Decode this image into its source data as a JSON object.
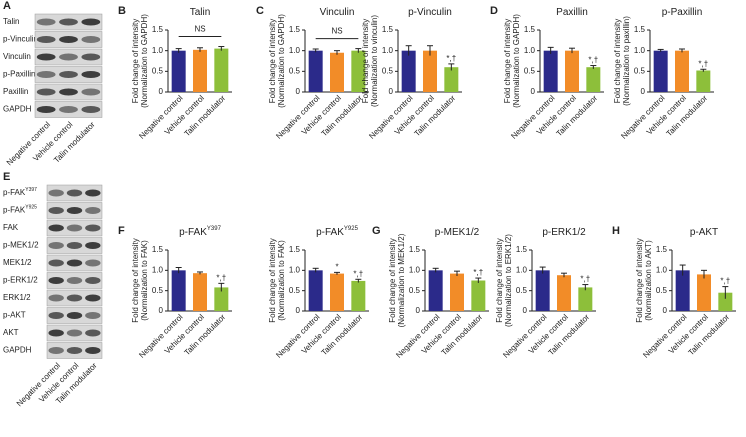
{
  "blots": [
    {
      "panel": "A",
      "labels": [
        "Talin",
        "p-Vinculin",
        "Vinculin",
        "p-Paxillin",
        "Paxillin",
        "GAPDH"
      ],
      "categories": [
        "Negative control",
        "Vehicle control",
        "Talin modulator"
      ]
    },
    {
      "panel": "E",
      "labels": [
        {
          "text": "p-FAK",
          "sup": "Y397"
        },
        {
          "text": "p-FAK",
          "sup": "Y925"
        },
        "FAK",
        "p-MEK1/2",
        "MEK1/2",
        "p-ERK1/2",
        "ERK1/2",
        "p-AKT",
        "AKT",
        "GAPDH"
      ],
      "categories": [
        "Negative control",
        "Vehicle control",
        "Talin modulator"
      ]
    }
  ],
  "chart_data": [
    {
      "type": "bar",
      "panel": "B",
      "title": "Talin",
      "y_label": [
        "Fold change of intensity",
        "(Normalization to GAPDH)"
      ],
      "categories": [
        "Negative control",
        "Vehicle control",
        "Talin modulator"
      ],
      "values": [
        1.0,
        1.02,
        1.05
      ],
      "errors": [
        0.05,
        0.05,
        0.05
      ],
      "colors": [
        "#2b2a8a",
        "#f28c28",
        "#8dbf3a"
      ],
      "ns": "NS",
      "ylim": [
        0,
        1.5
      ],
      "yticks": [
        0,
        0.5,
        {
          "value": 1,
          "label": "1.0"
        },
        1.5
      ]
    },
    {
      "type": "bar",
      "panel": "C",
      "title": "Vinculin",
      "y_label": [
        "Fold change of intensity",
        "(Normalization to GAPDH)"
      ],
      "categories": [
        "Negative control",
        "Vehicle control",
        "Talin modulator"
      ],
      "values": [
        1.0,
        0.95,
        1.0
      ],
      "errors": [
        0.04,
        0.05,
        0.05
      ],
      "colors": [
        "#2b2a8a",
        "#f28c28",
        "#8dbf3a"
      ],
      "ns": "NS",
      "ylim": [
        0,
        1.5
      ],
      "yticks": [
        0,
        0.5,
        {
          "value": 1,
          "label": "1.0"
        },
        1.5
      ]
    },
    {
      "type": "bar",
      "title": "p-Vinculin",
      "y_label": [
        "Fold change of intensity",
        "(Normalization to vinculin)"
      ],
      "categories": [
        "Negative control",
        "Vehicle control",
        "Talin modulator"
      ],
      "values": [
        1.0,
        1.0,
        0.6
      ],
      "errors": [
        0.12,
        0.12,
        0.08
      ],
      "significance": [
        null,
        null,
        "*,†"
      ],
      "colors": [
        "#2b2a8a",
        "#f28c28",
        "#8dbf3a"
      ],
      "ylim": [
        0,
        1.5
      ],
      "yticks": [
        0,
        0.5,
        {
          "value": 1,
          "label": "1.0"
        },
        1.5
      ]
    },
    {
      "type": "bar",
      "panel": "D",
      "title": "Paxillin",
      "y_label": [
        "Fold change of intensity",
        "(Normalization to GAPDH)"
      ],
      "categories": [
        "Negative control",
        "Vehicle control",
        "Talin modulator"
      ],
      "values": [
        1.0,
        1.0,
        0.6
      ],
      "errors": [
        0.08,
        0.06,
        0.04
      ],
      "significance": [
        null,
        null,
        "*,†"
      ],
      "colors": [
        "#2b2a8a",
        "#f28c28",
        "#8dbf3a"
      ],
      "ylim": [
        0,
        1.5
      ],
      "yticks": [
        0,
        0.5,
        {
          "value": 1,
          "label": "1.0"
        },
        1.5
      ]
    },
    {
      "type": "bar",
      "title": "p-Paxillin",
      "y_label": [
        "Fold change of intensity",
        "(Normalization to paxillin)"
      ],
      "categories": [
        "Negative control",
        "Vehicle control",
        "Talin modulator"
      ],
      "values": [
        1.0,
        1.0,
        0.52
      ],
      "errors": [
        0.03,
        0.04,
        0.03
      ],
      "significance": [
        null,
        null,
        "*,†"
      ],
      "colors": [
        "#2b2a8a",
        "#f28c28",
        "#8dbf3a"
      ],
      "ylim": [
        0,
        1.5
      ],
      "yticks": [
        0,
        0.5,
        {
          "value": 1,
          "label": "1.0"
        },
        1.5
      ]
    },
    {
      "type": "bar",
      "panel": "F",
      "title": "p-FAK",
      "title_sup": "Y397",
      "y_label": [
        "Fold change of intensity",
        "(Normalization to FAK)"
      ],
      "categories": [
        "Negative control",
        "Vehicle control",
        "Talin modulator"
      ],
      "values": [
        1.0,
        0.93,
        0.58
      ],
      "errors": [
        0.07,
        0.03,
        0.1
      ],
      "significance": [
        null,
        null,
        "*,†"
      ],
      "colors": [
        "#2b2a8a",
        "#f28c28",
        "#8dbf3a"
      ],
      "ylim": [
        0,
        1.5
      ],
      "yticks": [
        0,
        0.5,
        {
          "value": 1,
          "label": "1.0"
        },
        1.5
      ]
    },
    {
      "type": "bar",
      "title": "p-FAK",
      "title_sup": "Y925",
      "y_label": [
        "Fold change of intensity",
        "(Normalization to FAK)"
      ],
      "categories": [
        "Negative control",
        "Vehicle control",
        "Talin modulator"
      ],
      "values": [
        1.0,
        0.92,
        0.74
      ],
      "errors": [
        0.05,
        0.03,
        0.04
      ],
      "significance": [
        null,
        "*",
        "*,†"
      ],
      "colors": [
        "#2b2a8a",
        "#f28c28",
        "#8dbf3a"
      ],
      "ylim": [
        0,
        1.5
      ],
      "yticks": [
        0,
        0.5,
        {
          "value": 1,
          "label": "1.0"
        },
        1.5
      ]
    },
    {
      "type": "bar",
      "panel": "G",
      "title": "p-MEK1/2",
      "y_label": [
        "Fold change of intensity",
        "(Normalization to MEK1/2)"
      ],
      "categories": [
        "Negative control",
        "Vehicle control",
        "Talin modulator"
      ],
      "values": [
        1.0,
        0.92,
        0.75
      ],
      "errors": [
        0.05,
        0.06,
        0.06
      ],
      "significance": [
        null,
        null,
        "*,†"
      ],
      "colors": [
        "#2b2a8a",
        "#f28c28",
        "#8dbf3a"
      ],
      "ylim": [
        0,
        1.5
      ],
      "yticks": [
        0,
        0.5,
        {
          "value": 1,
          "label": "1.0"
        },
        1.5
      ]
    },
    {
      "type": "bar",
      "title": "p-ERK1/2",
      "y_label": [
        "Fold change of intensity",
        "(Normalization to ERK1/2)"
      ],
      "categories": [
        "Negative control",
        "Vehicle control",
        "Talin modulator"
      ],
      "values": [
        1.0,
        0.88,
        0.58
      ],
      "errors": [
        0.08,
        0.05,
        0.07
      ],
      "significance": [
        null,
        null,
        "*,†"
      ],
      "colors": [
        "#2b2a8a",
        "#f28c28",
        "#8dbf3a"
      ],
      "ylim": [
        0,
        1.5
      ],
      "yticks": [
        0,
        0.5,
        {
          "value": 1,
          "label": "1.0"
        },
        1.5
      ]
    },
    {
      "type": "bar",
      "panel": "H",
      "title": "p-AKT",
      "y_label": [
        "Fold change of intensity",
        "(Normalization to AKT)"
      ],
      "categories": [
        "Negative control",
        "Vehicle control",
        "Talin modulator"
      ],
      "values": [
        1.0,
        0.9,
        0.45
      ],
      "errors": [
        0.13,
        0.1,
        0.15
      ],
      "significance": [
        null,
        null,
        "*,†"
      ],
      "colors": [
        "#2b2a8a",
        "#f28c28",
        "#8dbf3a"
      ],
      "ylim": [
        0,
        1.5
      ],
      "yticks": [
        0,
        0.5,
        {
          "value": 1,
          "label": "1.0"
        },
        1.5
      ]
    }
  ]
}
